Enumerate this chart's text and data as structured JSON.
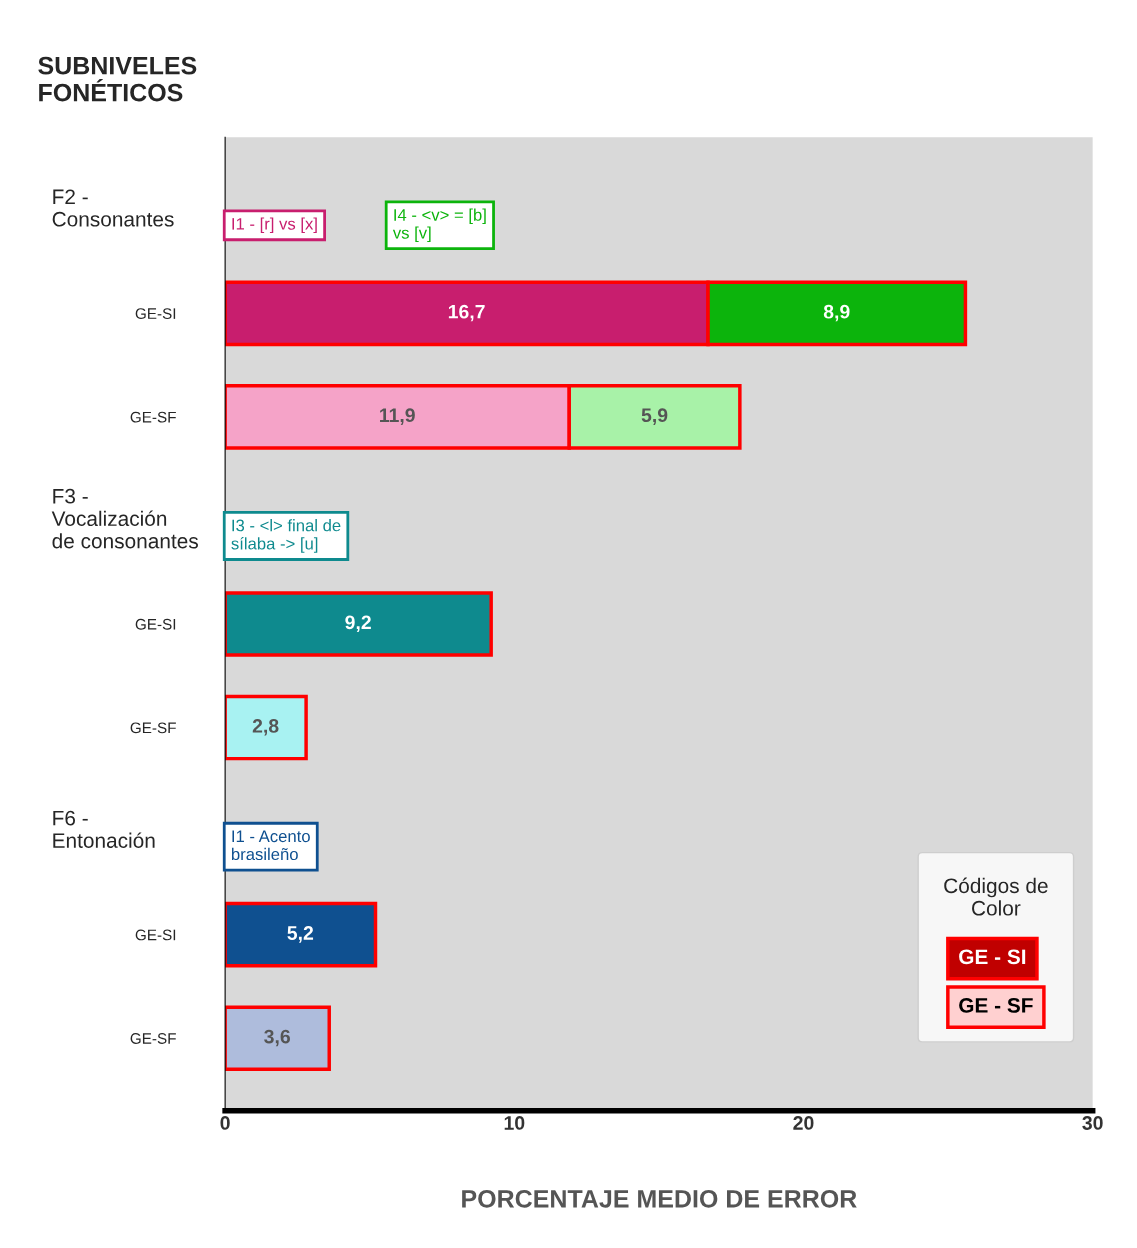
{
  "chart_data": {
    "type": "bar",
    "orientation": "horizontal",
    "stacked": true,
    "title": "SUBNIVELES\nFONÉTICOS",
    "xlabel": "PORCENTAJE MEDIO DE ERROR",
    "categories": [
      "GE-SI",
      "GE-SF",
      "GE-SI",
      "GE-SF",
      "GE-SI",
      "GE-SF"
    ],
    "series": [
      {
        "name": "I1 - [r] vs [x]",
        "colors": [
          "#c81e6e",
          "#f5a3c8",
          null,
          null,
          null,
          null
        ],
        "values": [
          16.7,
          11.9,
          null,
          null,
          null,
          null
        ],
        "value_labels": [
          "16,7",
          "11,9",
          null,
          null,
          null,
          null
        ]
      },
      {
        "name": "I4 - <v> = [b]\nvs [v]",
        "colors": [
          "#0cb40c",
          "#a8f2a8",
          null,
          null,
          null,
          null
        ],
        "values": [
          8.9,
          5.9,
          null,
          null,
          null,
          null
        ],
        "value_labels": [
          "8,9",
          "5,9",
          null,
          null,
          null,
          null
        ]
      },
      {
        "name": "I3 - <l> final de\nsílaba -> [u]",
        "colors": [
          null,
          null,
          "#0e8a8e",
          "#a8f2f2",
          null,
          null
        ],
        "values": [
          null,
          null,
          9.2,
          2.8,
          null,
          null
        ],
        "value_labels": [
          null,
          null,
          "9,2",
          "2,8",
          null,
          null
        ]
      },
      {
        "name": "I1 - Acento\nbrasileño",
        "colors": [
          null,
          null,
          null,
          null,
          "#0f5090",
          "#aebcdc"
        ],
        "values": [
          null,
          null,
          null,
          null,
          5.2,
          3.6
        ],
        "value_labels": [
          null,
          null,
          null,
          null,
          "5,2",
          "3,6"
        ]
      }
    ],
    "annotations": [
      "F2 -\nConsonantes",
      "F3 -\nVocalización\nde consonantes",
      "F6 -\nEntonación",
      "GE - SI",
      "GE - SF"
    ],
    "legend_title": "Códigos de\nColor",
    "legend": "top left",
    "xlim": [
      0,
      30
    ],
    "xticks": [
      0,
      10,
      20,
      30
    ],
    "grid": false
  }
}
